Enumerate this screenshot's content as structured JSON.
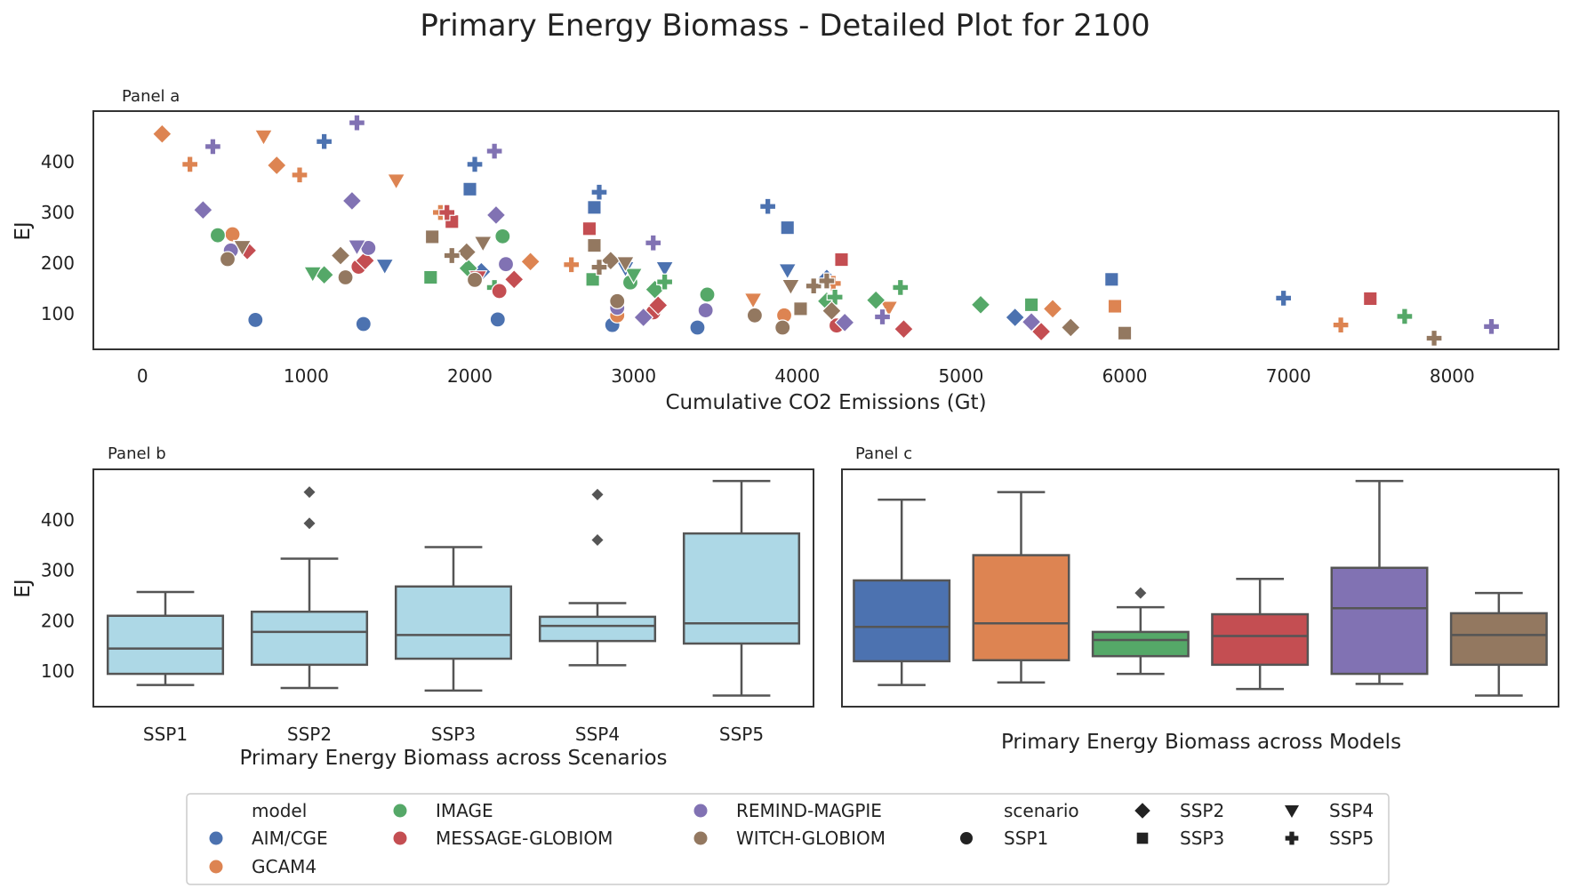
{
  "figure": {
    "title": "Primary Energy Biomass - Detailed Plot for 2100"
  },
  "colors": {
    "AIM/CGE": "#4c72b0",
    "GCAM4": "#dd8452",
    "IMAGE": "#55a868",
    "MESSAGE-GLOBIOM": "#c44e52",
    "REMIND-MAGPIE": "#8172b3",
    "WITCH-GLOBIOM": "#937860",
    "box_light": "#add8e6"
  },
  "chart_data": [
    {
      "id": "panel_a",
      "type": "scatter",
      "title": "Panel a",
      "xlabel": "Cumulative CO2 Emissions (Gt)",
      "ylabel": "EJ",
      "xlim": [
        -300,
        8650
      ],
      "ylim": [
        30,
        500
      ],
      "xticks": [
        "0",
        "1000",
        "2000",
        "3000",
        "4000",
        "5000",
        "6000",
        "7000",
        "8000"
      ],
      "yticks": [
        "100",
        "200",
        "300",
        "400"
      ],
      "grid": false,
      "marker_key": {
        "SSP1": "circle",
        "SSP2": "diamond",
        "SSP3": "square",
        "SSP4": "triangle-down",
        "SSP5": "plus"
      },
      "series": [
        {
          "name": "AIM/CGE",
          "points": [
            {
              "x": 690,
              "y": 88,
              "s": "SSP1"
            },
            {
              "x": 1350,
              "y": 80,
              "s": "SSP1"
            },
            {
              "x": 2170,
              "y": 89,
              "s": "SSP1"
            },
            {
              "x": 2870,
              "y": 78,
              "s": "SSP1"
            },
            {
              "x": 3390,
              "y": 73,
              "s": "SSP1"
            },
            {
              "x": 2070,
              "y": 183,
              "s": "SSP2"
            },
            {
              "x": 4180,
              "y": 170,
              "s": "SSP2"
            },
            {
              "x": 5330,
              "y": 93,
              "s": "SSP2"
            },
            {
              "x": 2000,
              "y": 346,
              "s": "SSP3"
            },
            {
              "x": 2760,
              "y": 310,
              "s": "SSP3"
            },
            {
              "x": 3940,
              "y": 270,
              "s": "SSP3"
            },
            {
              "x": 5920,
              "y": 168,
              "s": "SSP3"
            },
            {
              "x": 1480,
              "y": 195,
              "s": "SSP4"
            },
            {
              "x": 2950,
              "y": 190,
              "s": "SSP4"
            },
            {
              "x": 3190,
              "y": 190,
              "s": "SSP4"
            },
            {
              "x": 3940,
              "y": 186,
              "s": "SSP4"
            },
            {
              "x": 1110,
              "y": 440,
              "s": "SSP5"
            },
            {
              "x": 2030,
              "y": 395,
              "s": "SSP5"
            },
            {
              "x": 2790,
              "y": 340,
              "s": "SSP5"
            },
            {
              "x": 3820,
              "y": 312,
              "s": "SSP5"
            },
            {
              "x": 6970,
              "y": 131,
              "s": "SSP5"
            }
          ]
        },
        {
          "name": "GCAM4",
          "points": [
            {
              "x": 550,
              "y": 257,
              "s": "SSP1"
            },
            {
              "x": 2900,
              "y": 97,
              "s": "SSP1"
            },
            {
              "x": 3130,
              "y": 108,
              "s": "SSP1"
            },
            {
              "x": 3920,
              "y": 97,
              "s": "SSP1"
            },
            {
              "x": 120,
              "y": 455,
              "s": "SSP2"
            },
            {
              "x": 820,
              "y": 393,
              "s": "SSP2"
            },
            {
              "x": 2370,
              "y": 203,
              "s": "SSP2"
            },
            {
              "x": 5560,
              "y": 110,
              "s": "SSP2"
            },
            {
              "x": 5940,
              "y": 115,
              "s": "SSP3"
            },
            {
              "x": 740,
              "y": 450,
              "s": "SSP4"
            },
            {
              "x": 1550,
              "y": 363,
              "s": "SSP4"
            },
            {
              "x": 3730,
              "y": 128,
              "s": "SSP4"
            },
            {
              "x": 4560,
              "y": 112,
              "s": "SSP4"
            },
            {
              "x": 290,
              "y": 395,
              "s": "SSP5"
            },
            {
              "x": 960,
              "y": 374,
              "s": "SSP5"
            },
            {
              "x": 1820,
              "y": 300,
              "s": "SSP5"
            },
            {
              "x": 2620,
              "y": 197,
              "s": "SSP5"
            },
            {
              "x": 4220,
              "y": 160,
              "s": "SSP5"
            },
            {
              "x": 7320,
              "y": 78,
              "s": "SSP5"
            }
          ]
        },
        {
          "name": "IMAGE",
          "points": [
            {
              "x": 460,
              "y": 255,
              "s": "SSP1"
            },
            {
              "x": 2200,
              "y": 253,
              "s": "SSP1"
            },
            {
              "x": 2980,
              "y": 162,
              "s": "SSP1"
            },
            {
              "x": 3450,
              "y": 138,
              "s": "SSP1"
            },
            {
              "x": 1110,
              "y": 177,
              "s": "SSP2"
            },
            {
              "x": 1990,
              "y": 190,
              "s": "SSP2"
            },
            {
              "x": 3130,
              "y": 148,
              "s": "SSP2"
            },
            {
              "x": 4180,
              "y": 125,
              "s": "SSP2"
            },
            {
              "x": 4480,
              "y": 127,
              "s": "SSP2"
            },
            {
              "x": 5120,
              "y": 118,
              "s": "SSP2"
            },
            {
              "x": 1760,
              "y": 172,
              "s": "SSP3"
            },
            {
              "x": 2750,
              "y": 168,
              "s": "SSP3"
            },
            {
              "x": 5430,
              "y": 118,
              "s": "SSP3"
            },
            {
              "x": 1040,
              "y": 180,
              "s": "SSP4"
            },
            {
              "x": 3000,
              "y": 177,
              "s": "SSP4"
            },
            {
              "x": 2150,
              "y": 152,
              "s": "SSP5"
            },
            {
              "x": 3190,
              "y": 163,
              "s": "SSP5"
            },
            {
              "x": 4230,
              "y": 133,
              "s": "SSP5"
            },
            {
              "x": 4630,
              "y": 152,
              "s": "SSP5"
            },
            {
              "x": 7710,
              "y": 95,
              "s": "SSP5"
            }
          ]
        },
        {
          "name": "MESSAGE-GLOBIOM",
          "points": [
            {
              "x": 1320,
              "y": 193,
              "s": "SSP1"
            },
            {
              "x": 2180,
              "y": 145,
              "s": "SSP1"
            },
            {
              "x": 3120,
              "y": 103,
              "s": "SSP1"
            },
            {
              "x": 4240,
              "y": 77,
              "s": "SSP1"
            },
            {
              "x": 640,
              "y": 225,
              "s": "SSP2"
            },
            {
              "x": 1360,
              "y": 205,
              "s": "SSP2"
            },
            {
              "x": 2270,
              "y": 168,
              "s": "SSP2"
            },
            {
              "x": 3150,
              "y": 117,
              "s": "SSP2"
            },
            {
              "x": 4650,
              "y": 70,
              "s": "SSP2"
            },
            {
              "x": 5490,
              "y": 65,
              "s": "SSP2"
            },
            {
              "x": 1890,
              "y": 282,
              "s": "SSP3"
            },
            {
              "x": 2730,
              "y": 268,
              "s": "SSP3"
            },
            {
              "x": 4270,
              "y": 207,
              "s": "SSP3"
            },
            {
              "x": 7500,
              "y": 130,
              "s": "SSP3"
            },
            {
              "x": 2050,
              "y": 172,
              "s": "SSP4"
            },
            {
              "x": 1860,
              "y": 300,
              "s": "SSP5"
            }
          ]
        },
        {
          "name": "REMIND-MAGPIE",
          "points": [
            {
              "x": 540,
              "y": 225,
              "s": "SSP1"
            },
            {
              "x": 1380,
              "y": 230,
              "s": "SSP1"
            },
            {
              "x": 2220,
              "y": 198,
              "s": "SSP1"
            },
            {
              "x": 2900,
              "y": 112,
              "s": "SSP1"
            },
            {
              "x": 3440,
              "y": 107,
              "s": "SSP1"
            },
            {
              "x": 370,
              "y": 305,
              "s": "SSP2"
            },
            {
              "x": 1280,
              "y": 323,
              "s": "SSP2"
            },
            {
              "x": 2160,
              "y": 295,
              "s": "SSP2"
            },
            {
              "x": 3060,
              "y": 93,
              "s": "SSP2"
            },
            {
              "x": 4290,
              "y": 83,
              "s": "SSP2"
            },
            {
              "x": 5430,
              "y": 84,
              "s": "SSP2"
            },
            {
              "x": 1310,
              "y": 233,
              "s": "SSP4"
            },
            {
              "x": 430,
              "y": 430,
              "s": "SSP5"
            },
            {
              "x": 1310,
              "y": 477,
              "s": "SSP5"
            },
            {
              "x": 2150,
              "y": 421,
              "s": "SSP5"
            },
            {
              "x": 3120,
              "y": 240,
              "s": "SSP5"
            },
            {
              "x": 4520,
              "y": 94,
              "s": "SSP5"
            },
            {
              "x": 8240,
              "y": 75,
              "s": "SSP5"
            }
          ]
        },
        {
          "name": "WITCH-GLOBIOM",
          "points": [
            {
              "x": 520,
              "y": 208,
              "s": "SSP1"
            },
            {
              "x": 1240,
              "y": 172,
              "s": "SSP1"
            },
            {
              "x": 2030,
              "y": 167,
              "s": "SSP1"
            },
            {
              "x": 2900,
              "y": 125,
              "s": "SSP1"
            },
            {
              "x": 3740,
              "y": 97,
              "s": "SSP1"
            },
            {
              "x": 3910,
              "y": 73,
              "s": "SSP1"
            },
            {
              "x": 1210,
              "y": 215,
              "s": "SSP2"
            },
            {
              "x": 1980,
              "y": 222,
              "s": "SSP2"
            },
            {
              "x": 2860,
              "y": 205,
              "s": "SSP2"
            },
            {
              "x": 4210,
              "y": 106,
              "s": "SSP2"
            },
            {
              "x": 5670,
              "y": 73,
              "s": "SSP2"
            },
            {
              "x": 1770,
              "y": 252,
              "s": "SSP3"
            },
            {
              "x": 2760,
              "y": 235,
              "s": "SSP3"
            },
            {
              "x": 4020,
              "y": 110,
              "s": "SSP3"
            },
            {
              "x": 6000,
              "y": 62,
              "s": "SSP3"
            },
            {
              "x": 610,
              "y": 232,
              "s": "SSP4"
            },
            {
              "x": 2080,
              "y": 240,
              "s": "SSP4"
            },
            {
              "x": 2950,
              "y": 200,
              "s": "SSP4"
            },
            {
              "x": 3960,
              "y": 155,
              "s": "SSP4"
            },
            {
              "x": 1890,
              "y": 215,
              "s": "SSP5"
            },
            {
              "x": 2790,
              "y": 192,
              "s": "SSP5"
            },
            {
              "x": 4100,
              "y": 155,
              "s": "SSP5"
            },
            {
              "x": 4180,
              "y": 165,
              "s": "SSP5"
            },
            {
              "x": 7890,
              "y": 52,
              "s": "SSP5"
            }
          ]
        }
      ]
    },
    {
      "id": "panel_b",
      "type": "box",
      "title": "Panel b",
      "xlabel": "Primary Energy Biomass across Scenarios",
      "ylabel": "EJ",
      "ylim": [
        30,
        500
      ],
      "yticks": [
        "100",
        "200",
        "300",
        "400"
      ],
      "categories": [
        "SSP1",
        "SSP2",
        "SSP3",
        "SSP4",
        "SSP5"
      ],
      "boxes": [
        {
          "min": 73,
          "q1": 95,
          "median": 145,
          "q3": 210,
          "max": 257,
          "outliers": []
        },
        {
          "min": 67,
          "q1": 113,
          "median": 178,
          "q3": 218,
          "max": 323,
          "outliers": [
            393,
            455
          ]
        },
        {
          "min": 62,
          "q1": 125,
          "median": 172,
          "q3": 268,
          "max": 346,
          "outliers": []
        },
        {
          "min": 112,
          "q1": 160,
          "median": 190,
          "q3": 208,
          "max": 235,
          "outliers": [
            360,
            450
          ]
        },
        {
          "min": 52,
          "q1": 155,
          "median": 195,
          "q3": 373,
          "max": 477,
          "outliers": []
        }
      ]
    },
    {
      "id": "panel_c",
      "type": "box",
      "title": "Panel c",
      "xlabel": "Primary Energy Biomass across Models",
      "ylim": [
        30,
        500
      ],
      "categories": [
        "AIM/CGE",
        "GCAM4",
        "IMAGE",
        "MESSAGE-GLOBIOM",
        "REMIND-MAGPIE",
        "WITCH-GLOBIOM"
      ],
      "boxes": [
        {
          "min": 73,
          "q1": 120,
          "median": 188,
          "q3": 280,
          "max": 440,
          "outliers": []
        },
        {
          "min": 78,
          "q1": 122,
          "median": 195,
          "q3": 330,
          "max": 455,
          "outliers": []
        },
        {
          "min": 95,
          "q1": 130,
          "median": 162,
          "q3": 178,
          "max": 227,
          "outliers": [
            255
          ]
        },
        {
          "min": 65,
          "q1": 113,
          "median": 170,
          "q3": 213,
          "max": 283,
          "outliers": []
        },
        {
          "min": 75,
          "q1": 95,
          "median": 225,
          "q3": 305,
          "max": 477,
          "outliers": []
        },
        {
          "min": 52,
          "q1": 113,
          "median": 172,
          "q3": 215,
          "max": 255,
          "outliers": []
        }
      ]
    }
  ],
  "legend": {
    "model_title": "model",
    "models": [
      "AIM/CGE",
      "GCAM4",
      "IMAGE",
      "MESSAGE-GLOBIOM",
      "REMIND-MAGPIE",
      "WITCH-GLOBIOM"
    ],
    "scenario_title": "scenario",
    "scenarios": [
      "SSP1",
      "SSP2",
      "SSP3",
      "SSP4",
      "SSP5"
    ]
  }
}
